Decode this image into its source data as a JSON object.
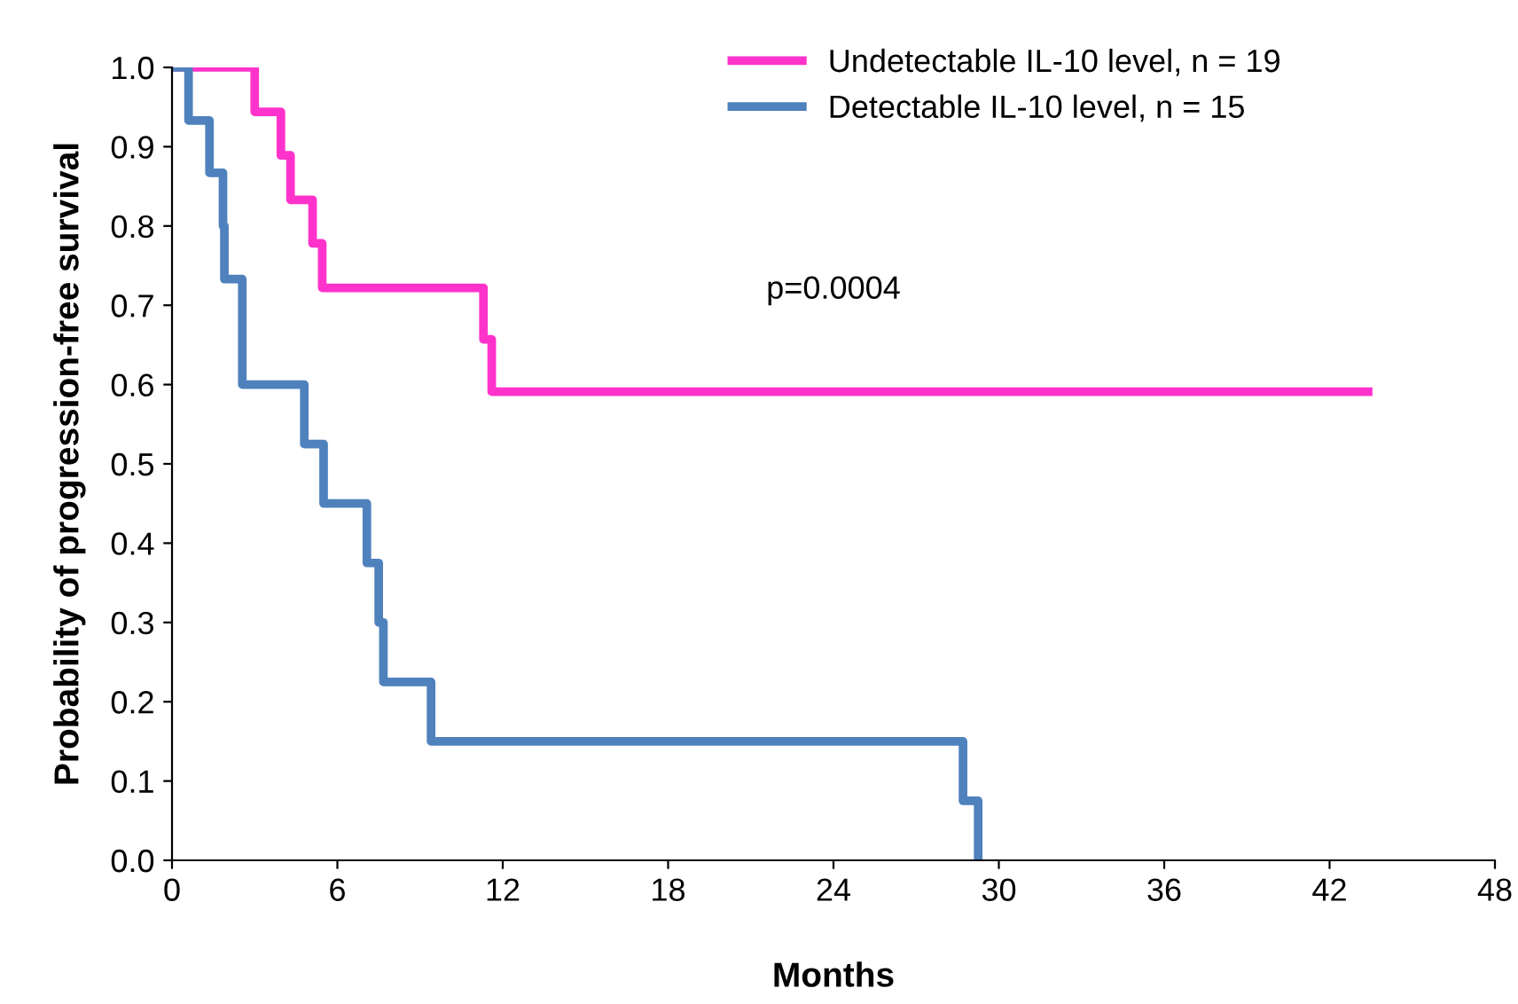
{
  "chart_data": {
    "type": "step",
    "xlabel": "Months",
    "ylabel": "Probability of progression-free survival",
    "series": [
      {
        "name": "Undetectable IL-10 level, n = 19",
        "color": "#ff33cc",
        "x": [
          0,
          3.0,
          3.95,
          4.3,
          5.1,
          5.45,
          11.3,
          11.6,
          43.4
        ],
        "values": [
          1.0,
          0.944,
          0.889,
          0.833,
          0.778,
          0.722,
          0.657,
          0.591,
          0.591
        ]
      },
      {
        "name": "Detectable IL-10 level, n = 15",
        "color": "#4f81bd",
        "x": [
          0,
          0.6,
          1.36,
          1.85,
          1.9,
          2.55,
          4.8,
          5.5,
          7.07,
          7.5,
          7.67,
          9.4,
          28.7,
          29.25
        ],
        "values": [
          1.0,
          0.933,
          0.867,
          0.8,
          0.733,
          0.6,
          0.525,
          0.45,
          0.375,
          0.3,
          0.225,
          0.15,
          0.075,
          0.0
        ]
      }
    ],
    "annotations": [
      "p=0.0004"
    ],
    "xlim": [
      0,
      48
    ],
    "xticks": [
      0,
      6,
      12,
      18,
      24,
      30,
      36,
      42,
      48
    ],
    "ylim": [
      0,
      1.0
    ],
    "yticks": [
      {
        "value": 0,
        "label": "0.0"
      },
      0.1,
      0.2,
      0.3,
      0.4,
      0.5,
      0.6,
      0.7,
      0.8,
      0.9,
      {
        "value": 1.0,
        "label": "1.0"
      }
    ],
    "grid": false,
    "legend": "top right",
    "line_style": "solid",
    "marker": "none"
  }
}
